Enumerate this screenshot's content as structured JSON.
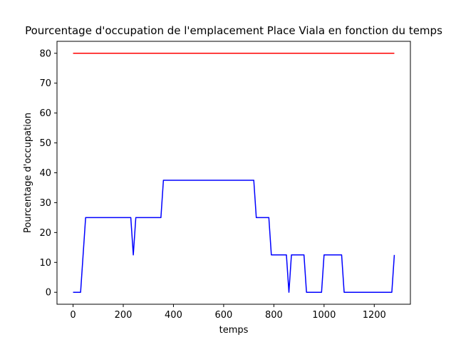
{
  "chart_data": {
    "type": "line",
    "title": "Pourcentage d'occupation de l'emplacement Place Viala en fonction du temps",
    "xlabel": "temps",
    "ylabel": "Pourcentage d'occupation",
    "xlim": [
      -64,
      1344
    ],
    "ylim": [
      -4,
      84
    ],
    "xticks": [
      0,
      200,
      400,
      600,
      800,
      1000,
      1200
    ],
    "yticks": [
      0,
      10,
      20,
      30,
      40,
      50,
      60,
      70,
      80
    ],
    "grid": false,
    "series": [
      {
        "color": "#ff0000",
        "x": [
          0,
          1280
        ],
        "y": [
          80,
          80
        ]
      },
      {
        "color": "#0000ff",
        "x": [
          0,
          30,
          50,
          230,
          240,
          250,
          350,
          360,
          720,
          730,
          780,
          790,
          850,
          860,
          870,
          920,
          930,
          990,
          1000,
          1070,
          1080,
          1270,
          1280
        ],
        "y": [
          0,
          0,
          25,
          25,
          12.5,
          25,
          25,
          37.5,
          37.5,
          25,
          25,
          12.5,
          12.5,
          0,
          12.5,
          12.5,
          0,
          0,
          12.5,
          12.5,
          0,
          0,
          12.5
        ]
      }
    ]
  }
}
